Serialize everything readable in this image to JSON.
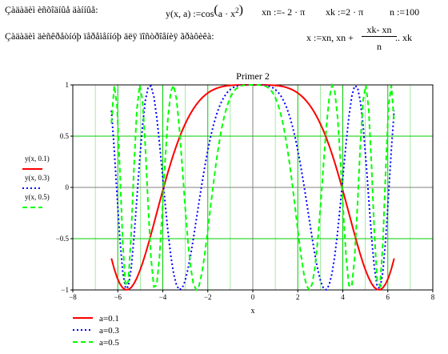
{
  "header": {
    "line1_label": "Çàäàäèì èñõîäíûå äàííûå:",
    "func_def_prefix": "y(x, a) :=cos",
    "func_def_body": "a · x",
    "func_def_exp": "2",
    "xn_def": "xn :=- 2 · π",
    "xk_def": "xk :=2 · π",
    "n_def": "n :=100",
    "line2_label": "Çàäàäèì äèñêðåòíóþ ïåðåìåííóþ äëÿ ïîñòðîåíèÿ ãðàôèêà:",
    "x_def_prefix": "x :=xn, xn +",
    "x_def_num": "xk- xn",
    "x_def_den": "n",
    "x_def_suffix": ".. xk"
  },
  "chart_data": {
    "type": "line",
    "title": "Primer 2",
    "xlabel": "x",
    "ylabel": "",
    "xlim": [
      -8,
      8
    ],
    "ylim": [
      -1,
      1
    ],
    "x_ticks": [
      -8,
      -6,
      -4,
      -2,
      0,
      2,
      4,
      6,
      8
    ],
    "y_ticks": [
      -1,
      -0.5,
      0,
      0.5,
      1
    ],
    "x_tick_labels": [
      "−8",
      "−6",
      "−4",
      "−2",
      "0",
      "2",
      "4",
      "6",
      "8"
    ],
    "y_tick_labels": [
      "−1",
      "−0.5",
      "0",
      "0.5",
      "1"
    ],
    "grid": true,
    "x_domain": [
      -6.2832,
      6.2832
    ],
    "points": 101,
    "series": [
      {
        "name": "y(x, 0.1)",
        "a": 0.1,
        "color": "#ff0000",
        "style": "solid"
      },
      {
        "name": "y(x, 0.3)",
        "a": 0.3,
        "color": "#0000ff",
        "style": "dotted"
      },
      {
        "name": "y(x, 0.5)",
        "a": 0.5,
        "color": "#00ff00",
        "style": "dashed"
      }
    ],
    "bottom_legend": [
      "a=0.1",
      "a=0.3",
      "a=0.5"
    ]
  },
  "colors": {
    "grid": "#00cc00",
    "axis": "#808080",
    "frame": "#000000"
  }
}
